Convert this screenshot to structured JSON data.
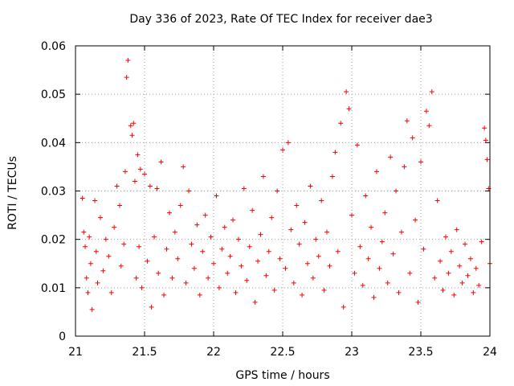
{
  "chart_data": {
    "type": "scatter",
    "title": "Day 336 of 2023, Rate Of TEC Index for receiver dae3",
    "xlabel": "GPS time / hours",
    "ylabel": "ROTI / TECUs",
    "xlim": [
      21,
      24
    ],
    "ylim": [
      0,
      0.06
    ],
    "x_ticks": [
      21,
      21.5,
      22,
      22.5,
      23,
      23.5,
      24
    ],
    "x_tick_labels": [
      "21",
      "21.5",
      "22",
      "22.5",
      "23",
      "23.5",
      "24"
    ],
    "y_ticks": [
      0,
      0.01,
      0.02,
      0.03,
      0.04,
      0.05,
      0.06
    ],
    "y_tick_labels": [
      "0",
      "0.01",
      "0.02",
      "0.03",
      "0.04",
      "0.05",
      "0.06"
    ],
    "grid": true,
    "marker": "+",
    "color": "#ff0000",
    "series": [
      {
        "points": [
          [
            21.05,
            0.0285
          ],
          [
            21.06,
            0.0215
          ],
          [
            21.07,
            0.0185
          ],
          [
            21.08,
            0.012
          ],
          [
            21.09,
            0.009
          ],
          [
            21.1,
            0.0205
          ],
          [
            21.11,
            0.015
          ],
          [
            21.12,
            0.0055
          ],
          [
            21.14,
            0.028
          ],
          [
            21.15,
            0.0175
          ],
          [
            21.16,
            0.011
          ],
          [
            21.18,
            0.0245
          ],
          [
            21.2,
            0.0135
          ],
          [
            21.22,
            0.02
          ],
          [
            21.24,
            0.0165
          ],
          [
            21.26,
            0.009
          ],
          [
            21.28,
            0.0225
          ],
          [
            21.3,
            0.031
          ],
          [
            21.32,
            0.027
          ],
          [
            21.33,
            0.0145
          ],
          [
            21.35,
            0.019
          ],
          [
            21.36,
            0.034
          ],
          [
            21.37,
            0.0535
          ],
          [
            21.38,
            0.057
          ],
          [
            21.4,
            0.0435
          ],
          [
            21.41,
            0.0415
          ],
          [
            21.42,
            0.044
          ],
          [
            21.43,
            0.032
          ],
          [
            21.44,
            0.012
          ],
          [
            21.45,
            0.0375
          ],
          [
            21.46,
            0.0185
          ],
          [
            21.47,
            0.0345
          ],
          [
            21.48,
            0.01
          ],
          [
            21.5,
            0.0335
          ],
          [
            21.52,
            0.0155
          ],
          [
            21.54,
            0.031
          ],
          [
            21.55,
            0.006
          ],
          [
            21.57,
            0.0205
          ],
          [
            21.59,
            0.0305
          ],
          [
            21.6,
            0.013
          ],
          [
            21.62,
            0.036
          ],
          [
            21.64,
            0.0085
          ],
          [
            21.66,
            0.018
          ],
          [
            21.68,
            0.0255
          ],
          [
            21.7,
            0.012
          ],
          [
            21.72,
            0.0215
          ],
          [
            21.74,
            0.016
          ],
          [
            21.76,
            0.027
          ],
          [
            21.78,
            0.035
          ],
          [
            21.8,
            0.011
          ],
          [
            21.82,
            0.03
          ],
          [
            21.84,
            0.019
          ],
          [
            21.86,
            0.014
          ],
          [
            21.88,
            0.023
          ],
          [
            21.9,
            0.0085
          ],
          [
            21.92,
            0.0175
          ],
          [
            21.94,
            0.025
          ],
          [
            21.96,
            0.012
          ],
          [
            21.98,
            0.0205
          ],
          [
            22.0,
            0.015
          ],
          [
            22.02,
            0.029
          ],
          [
            22.04,
            0.01
          ],
          [
            22.06,
            0.018
          ],
          [
            22.08,
            0.0225
          ],
          [
            22.1,
            0.013
          ],
          [
            22.12,
            0.0165
          ],
          [
            22.14,
            0.024
          ],
          [
            22.16,
            0.009
          ],
          [
            22.18,
            0.02
          ],
          [
            22.2,
            0.0145
          ],
          [
            22.22,
            0.0305
          ],
          [
            22.24,
            0.0115
          ],
          [
            22.26,
            0.0185
          ],
          [
            22.28,
            0.026
          ],
          [
            22.3,
            0.007
          ],
          [
            22.32,
            0.0155
          ],
          [
            22.34,
            0.021
          ],
          [
            22.36,
            0.033
          ],
          [
            22.38,
            0.0125
          ],
          [
            22.4,
            0.0175
          ],
          [
            22.42,
            0.0245
          ],
          [
            22.44,
            0.0095
          ],
          [
            22.46,
            0.03
          ],
          [
            22.48,
            0.016
          ],
          [
            22.5,
            0.0385
          ],
          [
            22.52,
            0.014
          ],
          [
            22.54,
            0.04
          ],
          [
            22.56,
            0.022
          ],
          [
            22.58,
            0.011
          ],
          [
            22.6,
            0.027
          ],
          [
            22.62,
            0.019
          ],
          [
            22.64,
            0.0085
          ],
          [
            22.66,
            0.0235
          ],
          [
            22.68,
            0.015
          ],
          [
            22.7,
            0.031
          ],
          [
            22.72,
            0.012
          ],
          [
            22.74,
            0.02
          ],
          [
            22.76,
            0.0165
          ],
          [
            22.78,
            0.028
          ],
          [
            22.8,
            0.0095
          ],
          [
            22.82,
            0.0215
          ],
          [
            22.84,
            0.0145
          ],
          [
            22.86,
            0.033
          ],
          [
            22.88,
            0.038
          ],
          [
            22.9,
            0.0175
          ],
          [
            22.92,
            0.044
          ],
          [
            22.94,
            0.006
          ],
          [
            22.96,
            0.0505
          ],
          [
            22.98,
            0.047
          ],
          [
            23.0,
            0.025
          ],
          [
            23.02,
            0.013
          ],
          [
            23.04,
            0.0395
          ],
          [
            23.06,
            0.0185
          ],
          [
            23.08,
            0.0105
          ],
          [
            23.1,
            0.029
          ],
          [
            23.12,
            0.016
          ],
          [
            23.14,
            0.0225
          ],
          [
            23.16,
            0.008
          ],
          [
            23.18,
            0.034
          ],
          [
            23.2,
            0.014
          ],
          [
            23.22,
            0.0195
          ],
          [
            23.24,
            0.0255
          ],
          [
            23.26,
            0.011
          ],
          [
            23.28,
            0.037
          ],
          [
            23.3,
            0.017
          ],
          [
            23.32,
            0.03
          ],
          [
            23.34,
            0.009
          ],
          [
            23.36,
            0.0215
          ],
          [
            23.38,
            0.035
          ],
          [
            23.4,
            0.0445
          ],
          [
            23.42,
            0.013
          ],
          [
            23.44,
            0.041
          ],
          [
            23.46,
            0.024
          ],
          [
            23.48,
            0.007
          ],
          [
            23.5,
            0.036
          ],
          [
            23.52,
            0.018
          ],
          [
            23.54,
            0.0465
          ],
          [
            23.56,
            0.0435
          ],
          [
            23.58,
            0.0505
          ],
          [
            23.6,
            0.012
          ],
          [
            23.62,
            0.028
          ],
          [
            23.64,
            0.0155
          ],
          [
            23.66,
            0.0095
          ],
          [
            23.68,
            0.0205
          ],
          [
            23.7,
            0.013
          ],
          [
            23.72,
            0.0175
          ],
          [
            23.74,
            0.0085
          ],
          [
            23.76,
            0.022
          ],
          [
            23.78,
            0.0145
          ],
          [
            23.8,
            0.011
          ],
          [
            23.82,
            0.019
          ],
          [
            23.84,
            0.0125
          ],
          [
            23.86,
            0.016
          ],
          [
            23.88,
            0.009
          ],
          [
            23.9,
            0.014
          ],
          [
            23.92,
            0.0105
          ],
          [
            23.94,
            0.0195
          ],
          [
            23.96,
            0.043
          ],
          [
            23.97,
            0.0405
          ],
          [
            23.98,
            0.0365
          ],
          [
            23.99,
            0.0305
          ],
          [
            24.0,
            0.015
          ]
        ]
      }
    ]
  }
}
